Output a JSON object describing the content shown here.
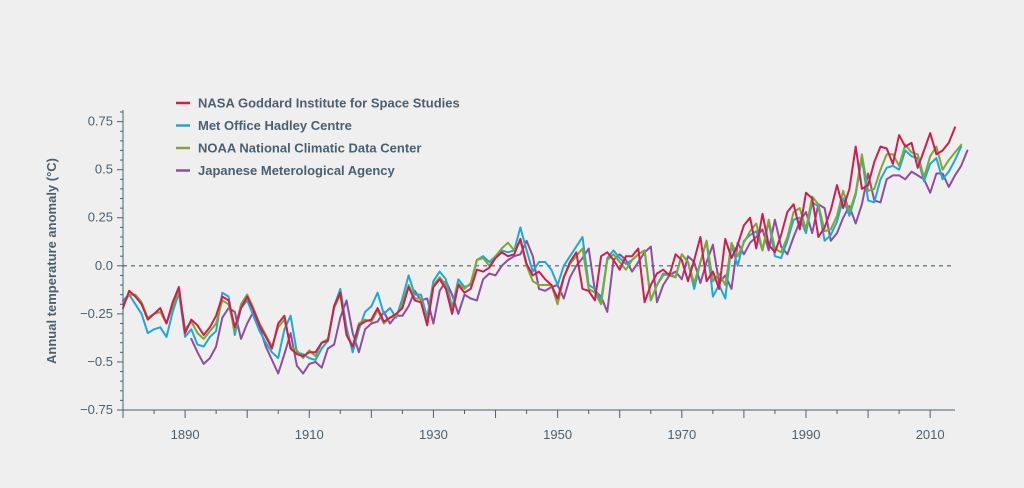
{
  "chart_data": {
    "type": "line",
    "title": "",
    "xlabel": "",
    "ylabel": "Annual temperature anomaly (°C)",
    "xlim": [
      1880,
      2014
    ],
    "ylim": [
      -0.75,
      0.8
    ],
    "y_ticks": [
      -0.75,
      -0.5,
      -0.25,
      0.0,
      0.25,
      0.5,
      0.75
    ],
    "y_tick_labels": [
      "−0.75",
      "−0.5",
      "−0.25",
      "0.0",
      "0.25",
      "0.5",
      "0.75"
    ],
    "x_ticks": [
      1890,
      1910,
      1930,
      1950,
      1970,
      1990,
      2010
    ],
    "x_tick_labels": [
      "1890",
      "1910",
      "1930",
      "1950",
      "1970",
      "1990",
      "2010"
    ],
    "zero_line": true,
    "legend_position": "top-left",
    "series": [
      {
        "name": "NASA Goddard Institute for Space Studies",
        "color": "#d01c50",
        "start_year": 1880,
        "values": [
          -0.22,
          -0.13,
          -0.16,
          -0.2,
          -0.28,
          -0.25,
          -0.22,
          -0.3,
          -0.19,
          -0.11,
          -0.35,
          -0.28,
          -0.31,
          -0.36,
          -0.32,
          -0.26,
          -0.16,
          -0.18,
          -0.32,
          -0.22,
          -0.16,
          -0.23,
          -0.31,
          -0.37,
          -0.43,
          -0.3,
          -0.26,
          -0.43,
          -0.46,
          -0.47,
          -0.45,
          -0.45,
          -0.4,
          -0.39,
          -0.21,
          -0.14,
          -0.36,
          -0.42,
          -0.31,
          -0.29,
          -0.28,
          -0.22,
          -0.29,
          -0.27,
          -0.25,
          -0.22,
          -0.11,
          -0.18,
          -0.19,
          -0.31,
          -0.11,
          -0.07,
          -0.12,
          -0.25,
          -0.1,
          -0.14,
          -0.12,
          -0.02,
          -0.03,
          -0.01,
          0.04,
          0.07,
          0.05,
          0.06,
          0.14,
          0.01,
          -0.05,
          -0.03,
          -0.07,
          -0.1,
          -0.17,
          -0.06,
          0.02,
          0.07,
          -0.12,
          -0.13,
          -0.18,
          0.05,
          0.07,
          0.03,
          -0.02,
          0.05,
          0.05,
          0.09,
          -0.19,
          -0.1,
          -0.04,
          -0.02,
          -0.05,
          0.06,
          0.03,
          -0.08,
          0.03,
          0.15,
          -0.08,
          -0.03,
          -0.12,
          0.14,
          0.04,
          0.11,
          0.21,
          0.25,
          0.09,
          0.27,
          0.11,
          0.07,
          0.16,
          0.28,
          0.32,
          0.19,
          0.38,
          0.35,
          0.15,
          0.2,
          0.29,
          0.42,
          0.3,
          0.4,
          0.62,
          0.4,
          0.42,
          0.54,
          0.62,
          0.61,
          0.53,
          0.68,
          0.62,
          0.64,
          0.51,
          0.6,
          0.69,
          0.58,
          0.6,
          0.64,
          0.72
        ]
      },
      {
        "name": "Met Office Hadley Centre",
        "color": "#1ea8d8",
        "start_year": 1880,
        "values": [
          -0.18,
          -0.15,
          -0.2,
          -0.25,
          -0.35,
          -0.33,
          -0.32,
          -0.37,
          -0.24,
          -0.14,
          -0.37,
          -0.33,
          -0.41,
          -0.42,
          -0.37,
          -0.34,
          -0.14,
          -0.16,
          -0.36,
          -0.22,
          -0.18,
          -0.26,
          -0.34,
          -0.4,
          -0.45,
          -0.48,
          -0.33,
          -0.26,
          -0.45,
          -0.46,
          -0.48,
          -0.49,
          -0.43,
          -0.39,
          -0.21,
          -0.12,
          -0.32,
          -0.45,
          -0.33,
          -0.24,
          -0.21,
          -0.14,
          -0.25,
          -0.22,
          -0.27,
          -0.17,
          -0.05,
          -0.15,
          -0.15,
          -0.27,
          -0.08,
          -0.03,
          -0.07,
          -0.22,
          -0.07,
          -0.11,
          -0.1,
          0.03,
          0.05,
          0.02,
          0.05,
          0.08,
          0.07,
          0.08,
          0.2,
          0.08,
          -0.03,
          0.02,
          0.02,
          -0.02,
          -0.1,
          0.0,
          0.05,
          0.1,
          0.15,
          -0.1,
          -0.12,
          -0.18,
          0.04,
          0.08,
          0.04,
          0.01,
          0.03,
          0.06,
          0.08,
          -0.18,
          -0.1,
          -0.04,
          -0.05,
          -0.06,
          0.06,
          0.02,
          -0.12,
          0.02,
          0.13,
          -0.16,
          -0.1,
          -0.17,
          0.11,
          0.0,
          0.13,
          0.16,
          0.18,
          0.08,
          0.23,
          0.05,
          0.04,
          0.13,
          0.24,
          0.25,
          0.17,
          0.33,
          0.31,
          0.13,
          0.16,
          0.23,
          0.35,
          0.26,
          0.37,
          0.56,
          0.34,
          0.33,
          0.45,
          0.51,
          0.52,
          0.5,
          0.6,
          0.57,
          0.56,
          0.44,
          0.53,
          0.56,
          0.45,
          0.49,
          0.55,
          0.62
        ]
      },
      {
        "name": "NOAA National Climatic Data Center",
        "color": "#7ea832",
        "start_year": 1880,
        "values": [
          -0.2,
          -0.15,
          -0.15,
          -0.19,
          -0.27,
          -0.25,
          -0.24,
          -0.3,
          -0.21,
          -0.13,
          -0.33,
          -0.29,
          -0.35,
          -0.38,
          -0.34,
          -0.3,
          -0.18,
          -0.2,
          -0.34,
          -0.2,
          -0.15,
          -0.22,
          -0.3,
          -0.36,
          -0.42,
          -0.32,
          -0.28,
          -0.42,
          -0.44,
          -0.48,
          -0.44,
          -0.47,
          -0.4,
          -0.38,
          -0.22,
          -0.15,
          -0.35,
          -0.42,
          -0.3,
          -0.28,
          -0.29,
          -0.23,
          -0.3,
          -0.27,
          -0.26,
          -0.2,
          -0.1,
          -0.17,
          -0.17,
          -0.3,
          -0.1,
          -0.06,
          -0.1,
          -0.24,
          -0.09,
          -0.12,
          -0.09,
          0.03,
          0.04,
          0.0,
          0.05,
          0.09,
          0.12,
          0.08,
          0.13,
          0.0,
          -0.08,
          -0.1,
          -0.1,
          -0.1,
          -0.2,
          -0.06,
          0.01,
          0.05,
          0.09,
          -0.12,
          -0.14,
          -0.2,
          0.03,
          0.06,
          0.02,
          -0.02,
          0.03,
          0.06,
          0.08,
          -0.18,
          -0.1,
          -0.05,
          -0.04,
          -0.06,
          0.06,
          0.02,
          -0.09,
          0.02,
          0.13,
          -0.08,
          -0.04,
          -0.1,
          0.12,
          0.05,
          0.12,
          0.18,
          0.22,
          0.08,
          0.24,
          0.09,
          0.07,
          0.15,
          0.28,
          0.3,
          0.19,
          0.36,
          0.32,
          0.18,
          0.19,
          0.26,
          0.39,
          0.28,
          0.38,
          0.58,
          0.39,
          0.4,
          0.5,
          0.58,
          0.58,
          0.52,
          0.63,
          0.59,
          0.58,
          0.46,
          0.57,
          0.62,
          0.5,
          0.55,
          0.59,
          0.63
        ]
      },
      {
        "name": "Japanese Meterological Agency",
        "color": "#8e4d9e",
        "start_year": 1891,
        "values": [
          -0.38,
          -0.45,
          -0.51,
          -0.48,
          -0.42,
          -0.27,
          -0.22,
          -0.24,
          -0.38,
          -0.3,
          -0.24,
          -0.32,
          -0.42,
          -0.49,
          -0.56,
          -0.46,
          -0.35,
          -0.52,
          -0.56,
          -0.51,
          -0.5,
          -0.53,
          -0.43,
          -0.41,
          -0.27,
          -0.18,
          -0.35,
          -0.45,
          -0.33,
          -0.3,
          -0.29,
          -0.24,
          -0.3,
          -0.26,
          -0.26,
          -0.21,
          -0.13,
          -0.18,
          -0.17,
          -0.3,
          -0.13,
          -0.08,
          -0.15,
          -0.25,
          -0.15,
          -0.17,
          -0.18,
          -0.07,
          -0.04,
          -0.05,
          0.0,
          0.03,
          0.05,
          0.06,
          0.13,
          0.05,
          -0.12,
          -0.13,
          -0.11,
          -0.1,
          -0.17,
          -0.06,
          0.0,
          0.04,
          0.09,
          -0.13,
          -0.16,
          -0.24,
          0.03,
          0.06,
          0.03,
          -0.03,
          0.02,
          0.07,
          0.1,
          -0.19,
          -0.1,
          -0.05,
          -0.03,
          -0.07,
          0.05,
          0.02,
          -0.09,
          0.02,
          0.11,
          -0.09,
          -0.05,
          -0.12,
          0.12,
          0.06,
          0.12,
          0.15,
          0.19,
          0.08,
          0.24,
          0.1,
          0.06,
          0.15,
          0.23,
          0.28,
          0.17,
          0.32,
          0.3,
          0.13,
          0.17,
          0.25,
          0.31,
          0.22,
          0.32,
          0.48,
          0.34,
          0.33,
          0.45,
          0.47,
          0.47,
          0.45,
          0.49,
          0.47,
          0.45,
          0.38,
          0.48,
          0.48,
          0.41,
          0.47,
          0.52,
          0.6
        ]
      }
    ]
  }
}
